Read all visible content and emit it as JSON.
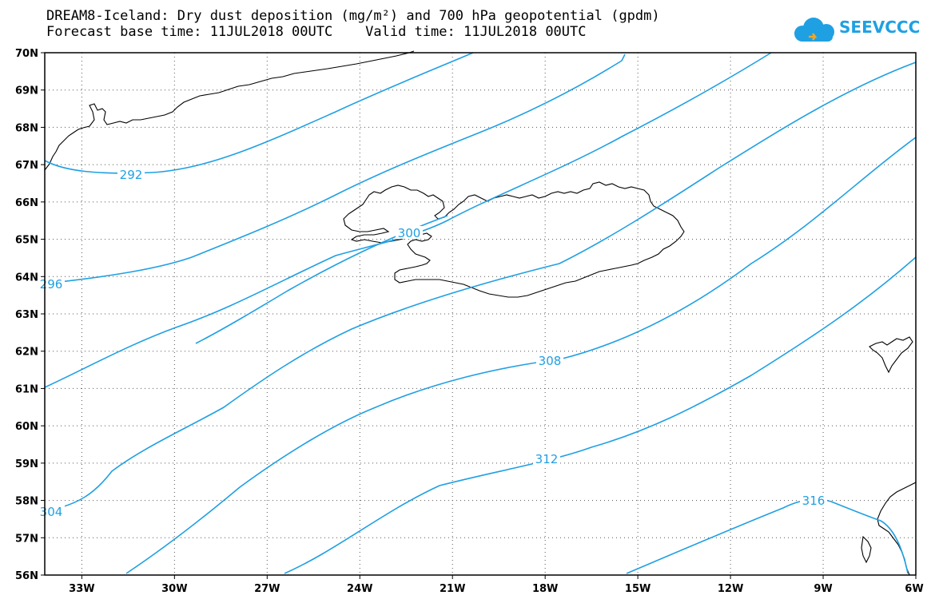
{
  "title": {
    "line1": "DREAM8-Iceland: Dry dust deposition (mg/m²) and 700 hPa geopotential (gpdm)",
    "line2": "Forecast base time: 11JUL2018 00UTC    Valid time: 11JUL2018 00UTC"
  },
  "logo": {
    "text": "SEEVCCC",
    "icon": "cloud-icon",
    "color": "#1fa0e3"
  },
  "map": {
    "lon_range": [
      -34.2,
      -6
    ],
    "lat_range": [
      56,
      70
    ],
    "lon_labels": [
      "33W",
      "30W",
      "27W",
      "24W",
      "21W",
      "18W",
      "15W",
      "12W",
      "9W",
      "6W"
    ],
    "lat_labels": [
      "70N",
      "69N",
      "68N",
      "67N",
      "66N",
      "65N",
      "64N",
      "63N",
      "62N",
      "61N",
      "60N",
      "59N",
      "58N",
      "57N",
      "56N"
    ],
    "gridlines": "dotted",
    "contour_color": "#1fa0e3",
    "contour_labels": [
      "292",
      "296",
      "300",
      "304",
      "308",
      "312",
      "316"
    ]
  }
}
